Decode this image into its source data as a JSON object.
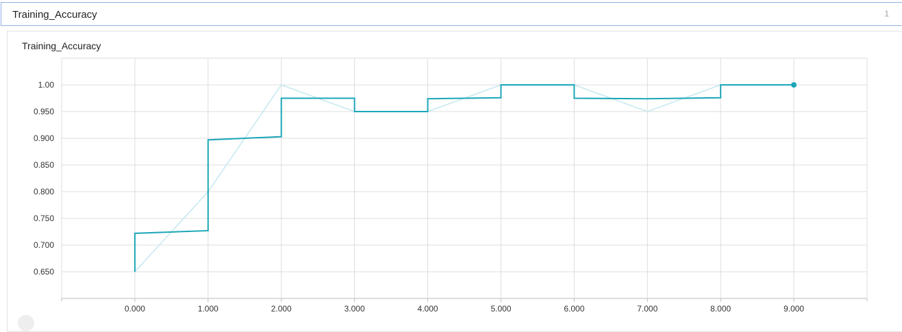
{
  "header": {
    "title": "Training_Accuracy",
    "count": "1"
  },
  "colors": {
    "line": "#1aa6b7",
    "raw_line": "#c5e8f0",
    "grid": "#dddddd",
    "axis": "#bbbbbb"
  },
  "chart_data": {
    "type": "line",
    "title": "Training_Accuracy",
    "xlabel": "",
    "ylabel": "",
    "x": [
      0,
      1,
      2,
      3,
      4,
      5,
      6,
      7,
      8,
      9
    ],
    "x_ticks": [
      0,
      1,
      2,
      3,
      4,
      5,
      6,
      7,
      8,
      9
    ],
    "x_tick_labels": [
      "0.000",
      "1.000",
      "2.000",
      "3.000",
      "4.000",
      "5.000",
      "6.000",
      "7.000",
      "8.000",
      "9.000"
    ],
    "y_ticks": [
      0.65,
      0.7,
      0.75,
      0.8,
      0.85,
      0.9,
      0.95,
      1.0
    ],
    "y_tick_labels": [
      "0.650",
      "0.700",
      "0.750",
      "0.800",
      "0.850",
      "0.900",
      "0.950",
      "1.00"
    ],
    "xlim": [
      -1,
      10
    ],
    "ylim": [
      0.6,
      1.05
    ],
    "grid": true,
    "series": [
      {
        "role": "raw",
        "values": [
          0.65,
          0.8,
          1.0,
          0.95,
          0.95,
          1.0,
          1.0,
          0.95,
          1.0,
          1.0
        ]
      },
      {
        "role": "smoothed-step",
        "steps": [
          {
            "x0": 0,
            "x1": 1,
            "y_start": 0.722,
            "y_end": 0.727
          },
          {
            "x0": 1,
            "x1": 2,
            "y_start": 0.897,
            "y_end": 0.903
          },
          {
            "x0": 2,
            "x1": 3,
            "y_start": 0.975,
            "y_end": 0.975
          },
          {
            "x0": 3,
            "x1": 4,
            "y_start": 0.95,
            "y_end": 0.95
          },
          {
            "x0": 4,
            "x1": 5,
            "y_start": 0.974,
            "y_end": 0.976
          },
          {
            "x0": 5,
            "x1": 6,
            "y_start": 1.0,
            "y_end": 1.0
          },
          {
            "x0": 6,
            "x1": 7,
            "y_start": 0.975,
            "y_end": 0.974
          },
          {
            "x0": 7,
            "x1": 8,
            "y_start": 0.974,
            "y_end": 0.976
          },
          {
            "x0": 8,
            "x1": 9,
            "y_start": 1.0,
            "y_end": 1.0
          }
        ],
        "endpoint": {
          "x": 9,
          "y": 1.0
        }
      }
    ]
  }
}
